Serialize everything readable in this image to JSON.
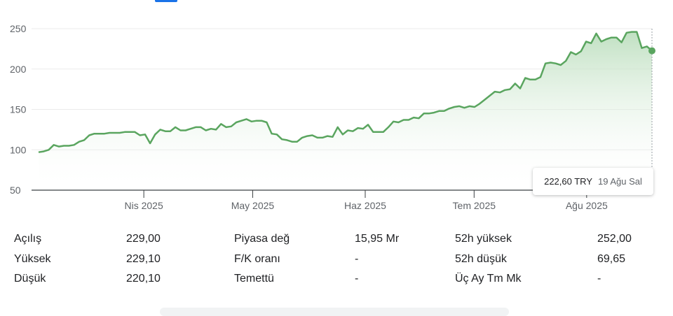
{
  "colors": {
    "line": "#5aa55f",
    "fill_top": "#b9ddbb",
    "grid": "#ebebeb",
    "axis": "#3c4043",
    "label": "#5f6368"
  },
  "chart_data": {
    "type": "area",
    "ylim": [
      50,
      255
    ],
    "y_ticks": [
      "250",
      "200",
      "150",
      "100",
      "50"
    ],
    "y_tick_values": [
      250,
      200,
      150,
      100,
      50
    ],
    "x_start": "2025-03-03",
    "x_end": "2025-08-19",
    "x_ticks": [
      {
        "label": "Nis 2025",
        "date": "2025-04-01"
      },
      {
        "label": "May 2025",
        "date": "2025-05-01"
      },
      {
        "label": "Haz 2025",
        "date": "2025-06-01"
      },
      {
        "label": "Tem 2025",
        "date": "2025-07-01"
      },
      {
        "label": "Ağu 2025",
        "date": "2025-08-01"
      }
    ],
    "series": [
      {
        "values": [
          97,
          98,
          100,
          106,
          104,
          105,
          105,
          106,
          110,
          112,
          118,
          120,
          120,
          120,
          121,
          121,
          121,
          122,
          122,
          122,
          118,
          119,
          108,
          119,
          125,
          123,
          123,
          128,
          124,
          124,
          126,
          128,
          128,
          124,
          126,
          125,
          132,
          128,
          129,
          134,
          136,
          138,
          135,
          136,
          136,
          134,
          120,
          119,
          113,
          112,
          110,
          110,
          115,
          117,
          118,
          115,
          115,
          117,
          116,
          128,
          119,
          124,
          123,
          127,
          126,
          131,
          122,
          122,
          122,
          128,
          135,
          134,
          137,
          137,
          140,
          139,
          145,
          145,
          146,
          148,
          148,
          151,
          153,
          154,
          152,
          154,
          153,
          157,
          162,
          167,
          172,
          171,
          174,
          175,
          182,
          176,
          189,
          187,
          187,
          190,
          207,
          208,
          207,
          205,
          210,
          221,
          218,
          222,
          234,
          232,
          244,
          234,
          237,
          239,
          239,
          233,
          245,
          246,
          246,
          226,
          228,
          222.6
        ]
      }
    ],
    "tooltip": {
      "price": "222,60 TRY",
      "date": "19 Ağu Sal"
    }
  },
  "stats": {
    "rows": [
      [
        {
          "label": "Açılış",
          "value": "229,00"
        },
        {
          "label": "Piyasa değ",
          "value": "15,95 Mr"
        },
        {
          "label": "52h yüksek",
          "value": "252,00"
        }
      ],
      [
        {
          "label": "Yüksek",
          "value": "229,10"
        },
        {
          "label": "F/K oranı",
          "value": "-"
        },
        {
          "label": "52h düşük",
          "value": "69,65"
        }
      ],
      [
        {
          "label": "Düşük",
          "value": "220,10"
        },
        {
          "label": "Temettü",
          "value": "-"
        },
        {
          "label": "Üç Ay Tm Mk",
          "value": "-"
        }
      ]
    ]
  }
}
